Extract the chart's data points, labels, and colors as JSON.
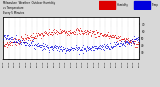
{
  "title_line1": "Milwaukee  Weather  Outdoor Humidity",
  "title_line2": "vs Temperature",
  "title_line3": "Every 5 Minutes",
  "background_color": "#d8d8d8",
  "plot_bg": "#ffffff",
  "red_color": "#dd0000",
  "blue_color": "#0000dd",
  "legend_red_label": "Humidity",
  "legend_blue_label": "Temp",
  "num_points": 288,
  "ylim_left": [
    40,
    100
  ],
  "ylim_right": [
    20,
    80
  ],
  "yticks_right": [
    30,
    40,
    50,
    60,
    70
  ],
  "dot_size": 0.3
}
